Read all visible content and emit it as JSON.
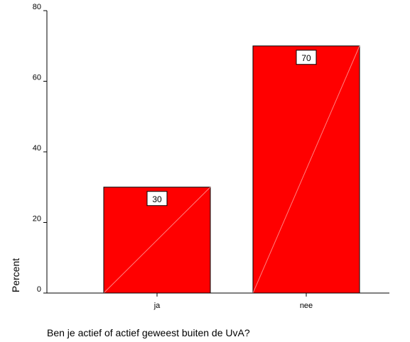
{
  "chart_data": {
    "type": "bar",
    "categories": [
      "ja",
      "nee"
    ],
    "values": [
      30,
      70
    ],
    "data_labels": [
      "30",
      "70"
    ],
    "title": "",
    "xlabel": "Ben je actief of actief geweest buiten de UvA?",
    "ylabel": "Percent",
    "ylim": [
      0,
      80
    ],
    "yticks": [
      0,
      20,
      40,
      60,
      80
    ],
    "grid": false,
    "legend": "none",
    "colors": {
      "bar_fill": "#ff0000",
      "bar_stroke": "#000000",
      "background": "#ffffff"
    }
  }
}
